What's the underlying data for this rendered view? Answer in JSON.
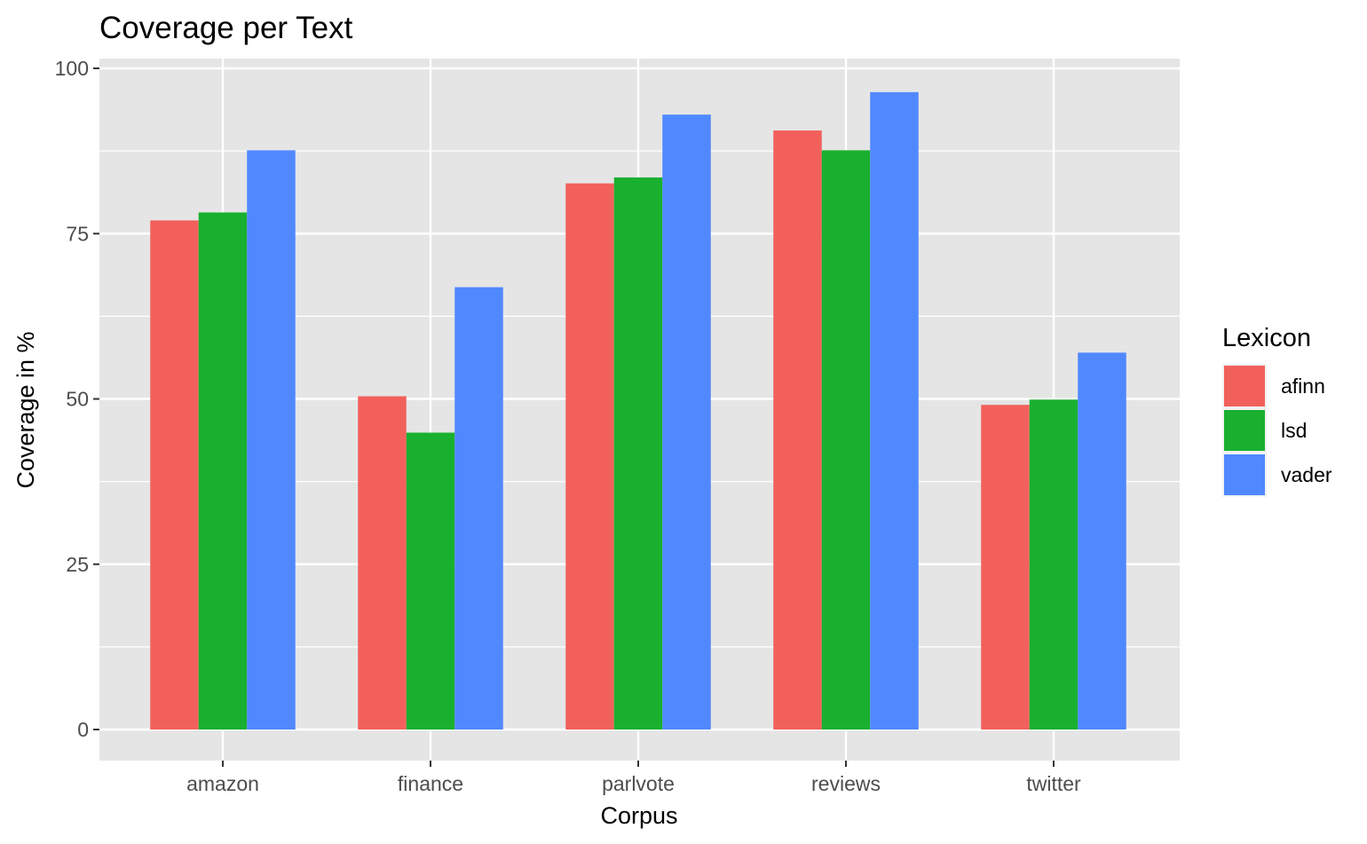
{
  "chart_data": {
    "type": "bar",
    "title": "Coverage per Text",
    "xlabel": "Corpus",
    "ylabel": "Coverage in %",
    "categories": [
      "amazon",
      "finance",
      "parlvote",
      "reviews",
      "twitter"
    ],
    "series": [
      {
        "name": "afinn",
        "color": "#F2605B",
        "values": [
          77.0,
          50.4,
          82.6,
          90.6,
          49.1
        ]
      },
      {
        "name": "lsd",
        "color": "#19B02F",
        "values": [
          78.2,
          44.9,
          83.5,
          87.6,
          49.9
        ]
      },
      {
        "name": "vader",
        "color": "#5088FF",
        "values": [
          87.6,
          66.9,
          93.0,
          96.4,
          57.0
        ]
      }
    ],
    "ylim": [
      0,
      100
    ],
    "yticks": [
      0,
      25,
      50,
      75,
      100
    ],
    "ytick_labels": [
      "0",
      "25",
      "50",
      "75",
      "100"
    ],
    "grid": true,
    "legend": {
      "title": "Lexicon",
      "placement": "right"
    },
    "panel_color": "#E5E5E5",
    "grid_color": "#FFFFFF"
  }
}
